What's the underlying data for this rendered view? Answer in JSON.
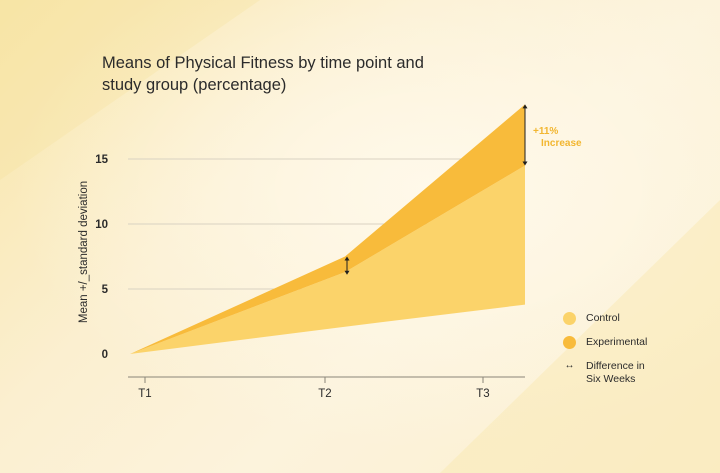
{
  "colors": {
    "control": "#fbd36a",
    "experimental": "#f8bb3b",
    "axis": "#2b2b2b",
    "grid": "#d9d2c2",
    "annotation": "#f2b630"
  },
  "chart_data": {
    "type": "area",
    "title": "Means of Physical Fitness by time point and study group (percentage)",
    "ylabel": "Mean +/_standard deviation",
    "xlabel": "",
    "x": [
      "T1",
      "T2",
      "T3"
    ],
    "ylim": [
      0,
      17
    ],
    "yticks": [
      0,
      5,
      10,
      15
    ],
    "grid": true,
    "legend_position": "right",
    "series": [
      {
        "name": "Control",
        "lower": [
          0,
          2.1,
          3.8
        ],
        "upper": [
          0,
          6.3,
          14.5
        ]
      },
      {
        "name": "Experimental",
        "lower": [
          0,
          6.3,
          14.5
        ],
        "upper": [
          0,
          7.5,
          19.2
        ]
      }
    ],
    "annotations": [
      {
        "label": "+11%",
        "label2": "Increase"
      }
    ],
    "legend": [
      {
        "label": "Control",
        "type": "dot"
      },
      {
        "label": "Experimental",
        "type": "dot"
      },
      {
        "label": "Difference in Six Weeks",
        "line1": "Difference in",
        "line2": "Six Weeks",
        "type": "arrow"
      }
    ]
  }
}
